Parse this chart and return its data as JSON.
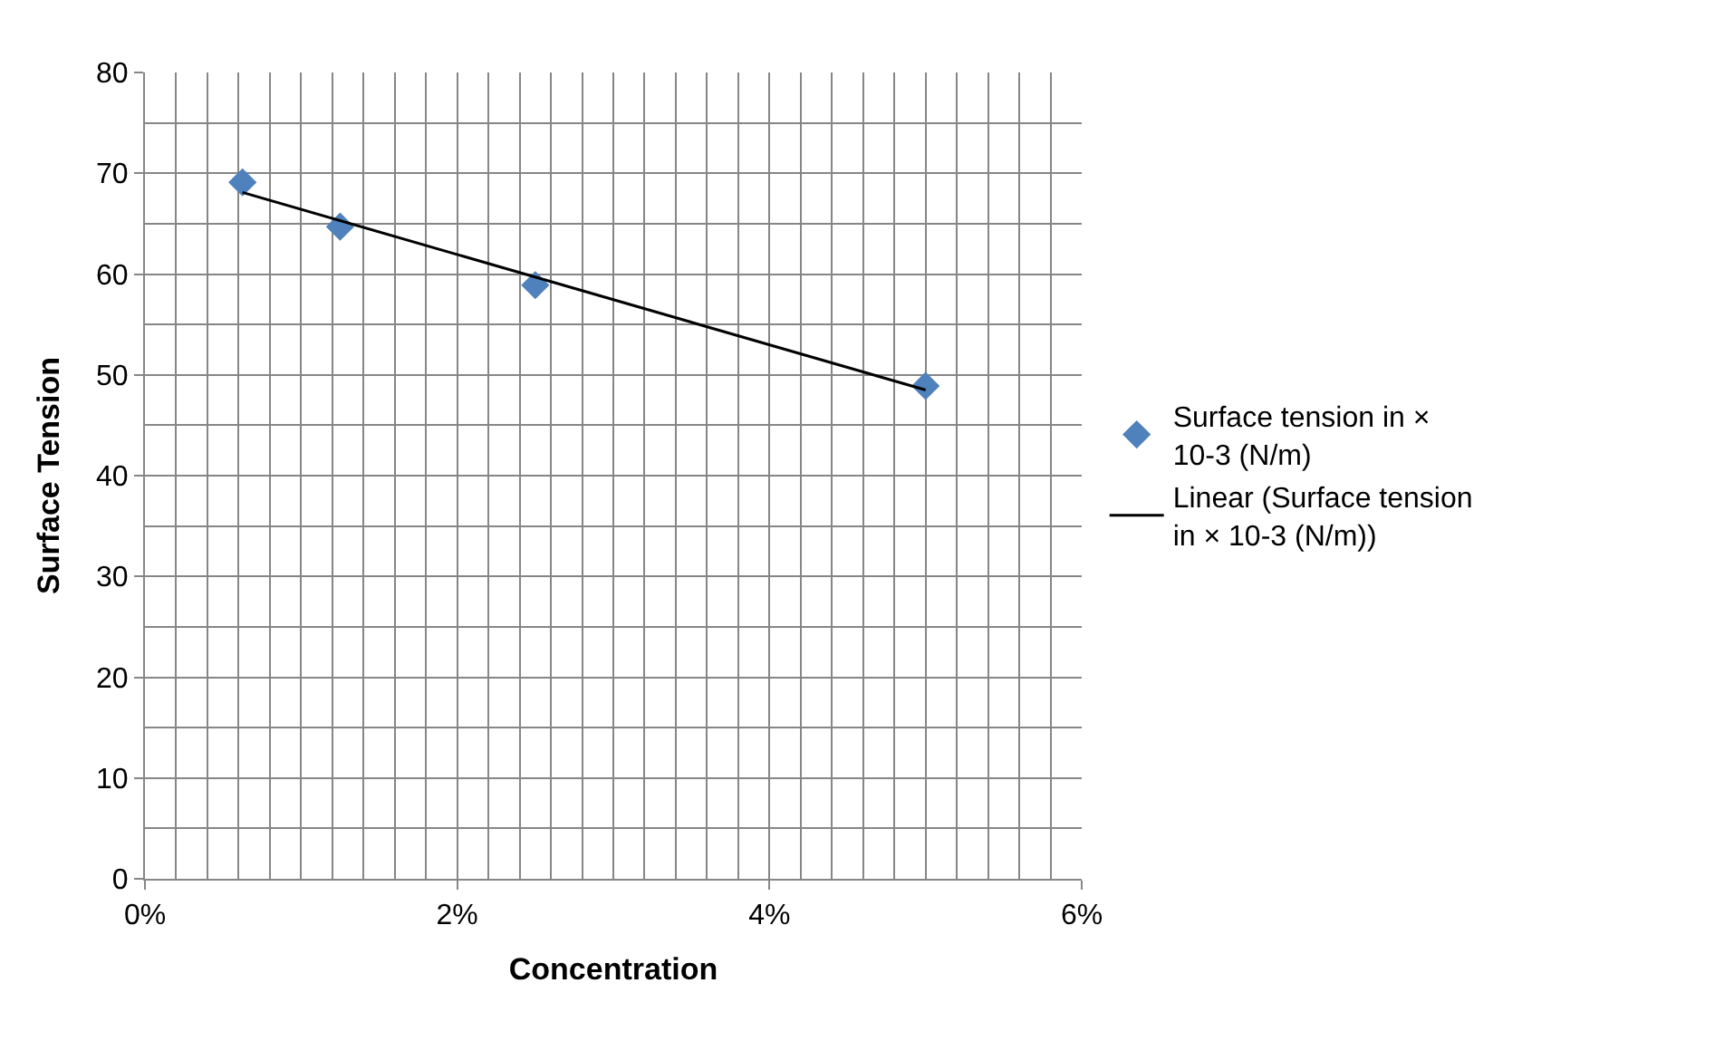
{
  "chart_data": {
    "type": "scatter",
    "xlabel": "Concentration",
    "ylabel": "Surface Tension",
    "xlim": [
      0,
      6
    ],
    "xticks": [
      {
        "value": 0,
        "label": "0%"
      },
      {
        "value": 2,
        "label": "2%"
      },
      {
        "value": 4,
        "label": "4%"
      },
      {
        "value": 6,
        "label": "6%"
      }
    ],
    "ylim": [
      0,
      80
    ],
    "yticks": [
      0,
      10,
      20,
      30,
      40,
      50,
      60,
      70,
      80
    ],
    "grid": true,
    "legend": "right",
    "marker": "diamond",
    "series": [
      {
        "name": "Surface tension in × 10-3 (N/m)",
        "color": "#4f81bd",
        "x": [
          0.625,
          1.25,
          2.5,
          5
        ],
        "values": [
          69.1,
          64.7,
          58.9,
          48.9
        ]
      },
      {
        "name": "Linear (Surface tension in × 10-3 (N/m))",
        "type": "line",
        "color": "#000000",
        "marker": "none",
        "line_style": "solid",
        "x": [
          0.625,
          5
        ],
        "values": [
          68.1,
          48.5
        ]
      }
    ]
  }
}
